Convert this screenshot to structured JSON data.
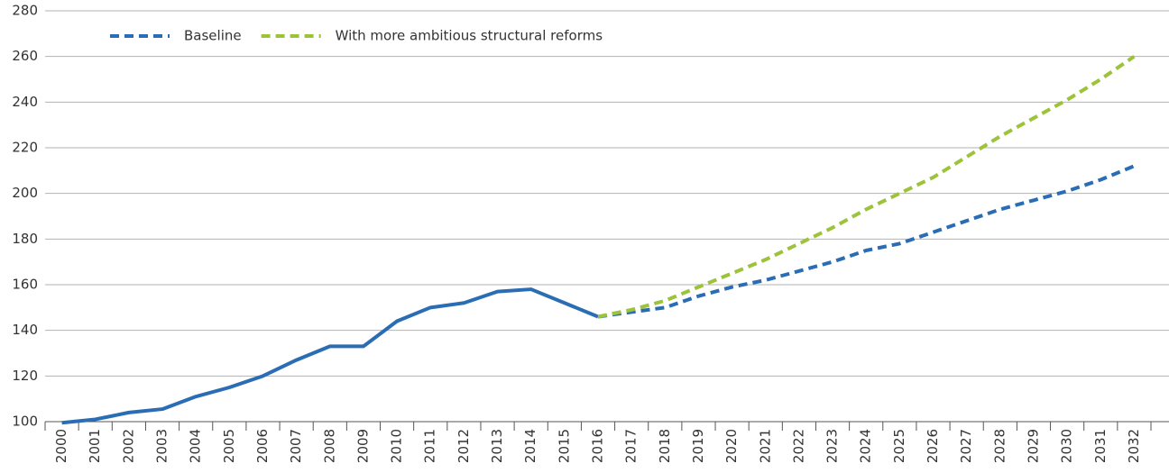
{
  "chart_data": {
    "type": "line",
    "categories": [
      "2000",
      "2001",
      "2002",
      "2003",
      "2004",
      "2005",
      "2006",
      "2007",
      "2008",
      "2009",
      "2010",
      "2011",
      "2012",
      "2013",
      "2014",
      "2015",
      "2016",
      "2017",
      "2018",
      "2019",
      "2020",
      "2021",
      "2022",
      "2023",
      "2024",
      "2025",
      "2026",
      "2027",
      "2028",
      "2029",
      "2030",
      "2031",
      "2032"
    ],
    "series": [
      {
        "color": "#2a6db5",
        "style": "solid",
        "values": [
          99.5,
          101,
          104,
          105.5,
          111,
          115,
          120,
          127,
          133,
          133,
          144,
          150,
          152,
          157,
          158,
          152,
          146,
          null,
          null,
          null,
          null,
          null,
          null,
          null,
          null,
          null,
          null,
          null,
          null,
          null,
          null,
          null,
          null
        ]
      },
      {
        "name": "Baseline",
        "color": "#2a6db5",
        "style": "dashed",
        "values": [
          null,
          null,
          null,
          null,
          null,
          null,
          null,
          null,
          null,
          null,
          null,
          null,
          null,
          null,
          null,
          null,
          146,
          148,
          150,
          155,
          159,
          162,
          166,
          170,
          175,
          178,
          183,
          188,
          193,
          197,
          201,
          206,
          212
        ]
      },
      {
        "name": "With more ambitious structural reforms",
        "color": "#9dc33b",
        "style": "dashed",
        "values": [
          null,
          null,
          null,
          null,
          null,
          null,
          null,
          null,
          null,
          null,
          null,
          null,
          null,
          null,
          null,
          null,
          146,
          149,
          153,
          159,
          165,
          171,
          178,
          185,
          193,
          200,
          207,
          216,
          225,
          233,
          241,
          250,
          260
        ]
      }
    ],
    "ylim": [
      100,
      280
    ],
    "yticks": [
      100,
      120,
      140,
      160,
      180,
      200,
      220,
      240,
      260,
      280
    ],
    "grid": true,
    "legend": "top-left"
  }
}
